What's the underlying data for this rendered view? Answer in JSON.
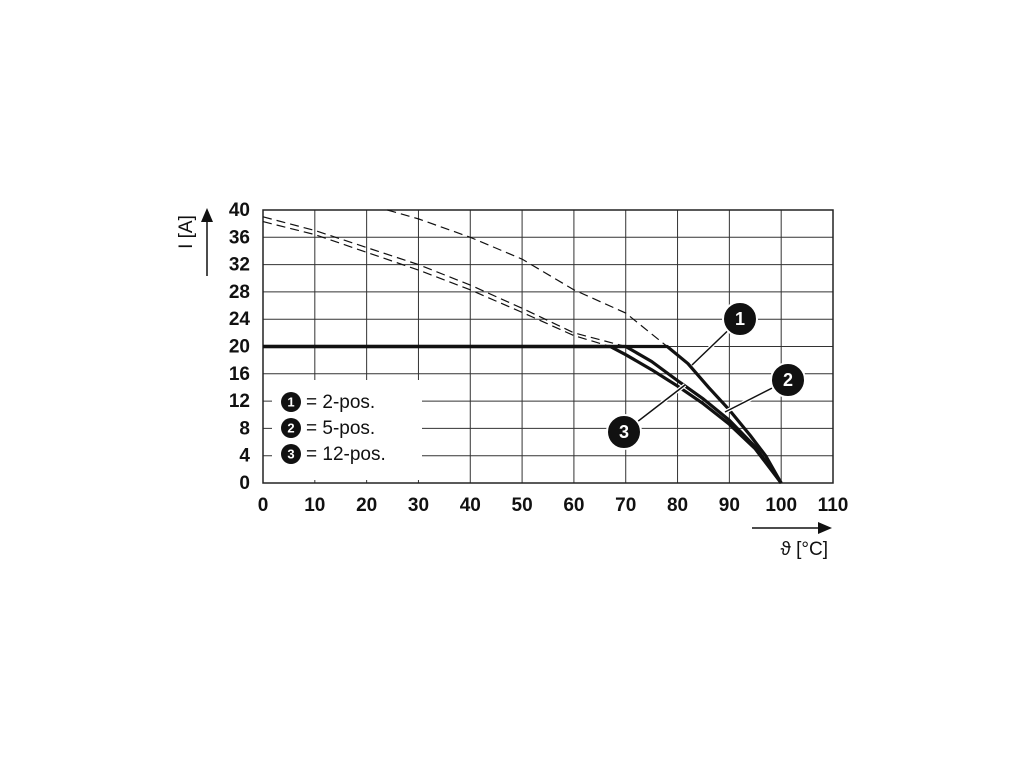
{
  "chart_data": {
    "type": "line",
    "y_label": "I [A]",
    "x_label": "ϑ [°C]",
    "xlim": [
      0,
      110
    ],
    "xticks": [
      0,
      10,
      20,
      30,
      40,
      50,
      60,
      70,
      80,
      90,
      100,
      110
    ],
    "ylim": [
      0,
      40
    ],
    "yticks": [
      0,
      4,
      8,
      12,
      16,
      20,
      24,
      28,
      32,
      36,
      40
    ],
    "grid": true,
    "series": [
      {
        "name": "= 2-pos.",
        "marker": "1",
        "color": "#111111",
        "x": [
          0,
          78,
          82,
          86,
          90,
          94,
          97,
          100
        ],
        "values": [
          20,
          20,
          17.5,
          14,
          10.7,
          7,
          4,
          0
        ],
        "dashed_x": [
          24,
          30,
          40,
          50,
          60,
          70,
          78
        ],
        "dashed_values": [
          40,
          38.7,
          36,
          32.8,
          28.3,
          24.9,
          20
        ]
      },
      {
        "name": "= 5-pos.",
        "marker": "2",
        "color": "#111111",
        "x": [
          0,
          70,
          75,
          80,
          85,
          90,
          95,
          100
        ],
        "values": [
          20,
          20,
          17.8,
          15,
          12.3,
          9.2,
          5.3,
          0
        ],
        "dashed_x": [
          0,
          10,
          20,
          30,
          40,
          50,
          60,
          70
        ],
        "dashed_values": [
          39,
          37,
          34.5,
          32,
          29,
          25.6,
          22,
          20
        ]
      },
      {
        "name": "= 12-pos.",
        "marker": "3",
        "color": "#111111",
        "x": [
          0,
          67,
          70,
          75,
          80,
          85,
          90,
          95,
          100
        ],
        "values": [
          20,
          20,
          18.8,
          16.6,
          14.2,
          11.6,
          8.6,
          5,
          0
        ],
        "dashed_x": [
          0,
          10,
          20,
          30,
          40,
          50,
          60,
          67
        ],
        "dashed_values": [
          38.3,
          36.4,
          33.8,
          31.2,
          28.3,
          25,
          21.6,
          20
        ]
      }
    ]
  }
}
